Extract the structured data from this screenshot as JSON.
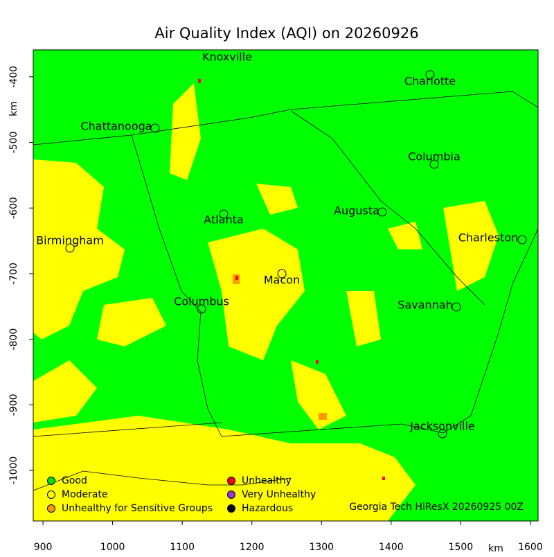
{
  "chart_data": {
    "type": "map",
    "title": "Air Quality Index (AQI) on 20260926",
    "x_label": "km",
    "y_label": "km",
    "xlim": [
      886,
      1611
    ],
    "ylim": [
      -1077,
      -359
    ],
    "xticks": [
      900,
      1000,
      1100,
      1200,
      1300,
      1400,
      1500,
      1600
    ],
    "yticks": [
      -400,
      -500,
      -600,
      -700,
      -800,
      -900,
      -1000
    ],
    "cities": [
      "Knoxville",
      "Charlotte",
      "Chattanooga",
      "Columbia",
      "Atlanta",
      "Augusta",
      "Charleston",
      "Birmingham",
      "Macon",
      "Columbus",
      "Savannah",
      "Jacksonville"
    ],
    "legend": [
      {
        "name": "Good",
        "color": "#00e000"
      },
      {
        "name": "Moderate",
        "color": "#ffff00"
      },
      {
        "name": "Unhealthy for Sensitive Groups",
        "color": "#ff9900"
      },
      {
        "name": "Unhealthy",
        "color": "#ff0000"
      },
      {
        "name": "Very Unhealthy",
        "color": "#9933cc"
      },
      {
        "name": "Hazardous",
        "color": "#000000"
      }
    ],
    "credit": "Georgia Tech HiResX 20260925 00Z"
  }
}
